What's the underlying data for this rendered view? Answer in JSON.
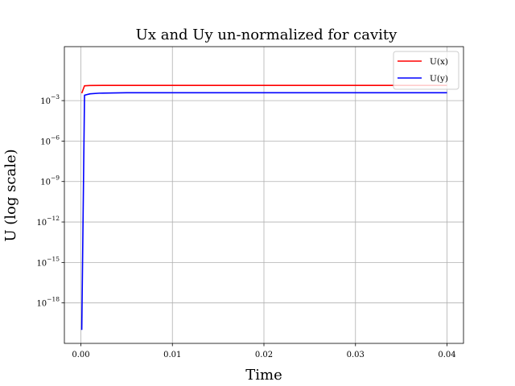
{
  "chart_data": {
    "type": "line",
    "title": "Ux and Uy un-normalized for cavity",
    "xlabel": "Time",
    "ylabel": "U (log scale)",
    "yscale": "log",
    "xlim": [
      -0.0018,
      0.0418
    ],
    "ylim_log10": [
      -21.0,
      1.0
    ],
    "grid": true,
    "legend_position": "top-right",
    "x_ticks": [
      {
        "value": 0.0,
        "label": "0.00"
      },
      {
        "value": 0.01,
        "label": "0.01"
      },
      {
        "value": 0.02,
        "label": "0.02"
      },
      {
        "value": 0.03,
        "label": "0.03"
      },
      {
        "value": 0.04,
        "label": "0.04"
      }
    ],
    "y_ticks": [
      {
        "exp": -3,
        "base": "10",
        "sup": "−3"
      },
      {
        "exp": -6,
        "base": "10",
        "sup": "−6"
      },
      {
        "exp": -9,
        "base": "10",
        "sup": "−9"
      },
      {
        "exp": -12,
        "base": "10",
        "sup": "−12"
      },
      {
        "exp": -15,
        "base": "10",
        "sup": "−15"
      },
      {
        "exp": -18,
        "base": "10",
        "sup": "−18"
      }
    ],
    "series": [
      {
        "name": "U(x)",
        "color": "#ff0000",
        "x": [
          0.0001,
          0.0004,
          0.001,
          0.003,
          0.01,
          0.02,
          0.03,
          0.04
        ],
        "y_log10": [
          -2.45,
          -1.9,
          -1.88,
          -1.87,
          -1.87,
          -1.87,
          -1.87,
          -1.87
        ]
      },
      {
        "name": "U(y)",
        "color": "#0000ff",
        "x": [
          0.0001,
          0.0004,
          0.001,
          0.002,
          0.005,
          0.01,
          0.02,
          0.03,
          0.04
        ],
        "y_log10": [
          -20.0,
          -2.6,
          -2.5,
          -2.45,
          -2.42,
          -2.42,
          -2.42,
          -2.42,
          -2.42
        ]
      }
    ]
  }
}
